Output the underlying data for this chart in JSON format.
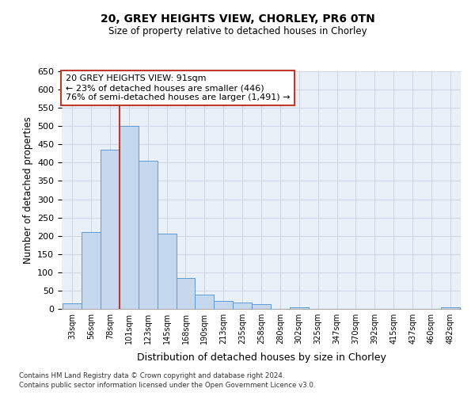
{
  "title1": "20, GREY HEIGHTS VIEW, CHORLEY, PR6 0TN",
  "title2": "Size of property relative to detached houses in Chorley",
  "xlabel": "Distribution of detached houses by size in Chorley",
  "ylabel": "Number of detached properties",
  "bar_labels": [
    "33sqm",
    "56sqm",
    "78sqm",
    "101sqm",
    "123sqm",
    "145sqm",
    "168sqm",
    "190sqm",
    "213sqm",
    "235sqm",
    "258sqm",
    "280sqm",
    "302sqm",
    "325sqm",
    "347sqm",
    "370sqm",
    "392sqm",
    "415sqm",
    "437sqm",
    "460sqm",
    "482sqm"
  ],
  "bar_values": [
    15,
    210,
    435,
    500,
    405,
    205,
    85,
    40,
    22,
    18,
    12,
    0,
    5,
    0,
    0,
    0,
    0,
    0,
    0,
    0,
    5
  ],
  "bar_color": "#c5d8ed",
  "bar_edge_color": "#5b9bd5",
  "grid_color": "#d0d8e8",
  "background_color": "#eaf0f8",
  "vline_color": "#c0392b",
  "annotation_line1": "20 GREY HEIGHTS VIEW: 91sqm",
  "annotation_line2": "← 23% of detached houses are smaller (446)",
  "annotation_line3": "76% of semi-detached houses are larger (1,491) →",
  "annotation_box_color": "#c0392b",
  "ylim": [
    0,
    650
  ],
  "yticks": [
    0,
    50,
    100,
    150,
    200,
    250,
    300,
    350,
    400,
    450,
    500,
    550,
    600,
    650
  ],
  "footer1": "Contains HM Land Registry data © Crown copyright and database right 2024.",
  "footer2": "Contains public sector information licensed under the Open Government Licence v3.0."
}
